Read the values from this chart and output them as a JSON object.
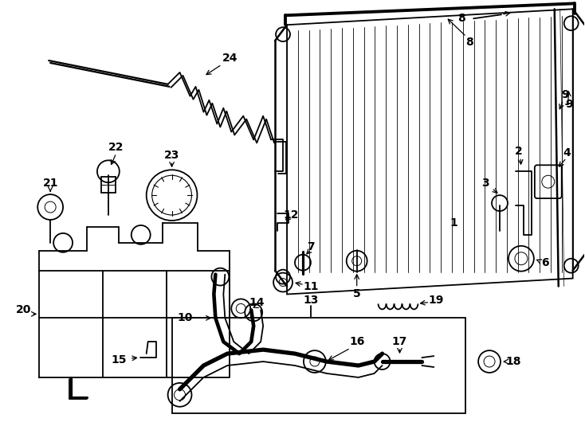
{
  "bg_color": "#ffffff",
  "line_color": "#000000",
  "fig_width": 7.34,
  "fig_height": 5.4,
  "dpi": 100,
  "lw": 1.3,
  "font_size": 10,
  "xlim": [
    0,
    734
  ],
  "ylim": [
    540,
    0
  ]
}
